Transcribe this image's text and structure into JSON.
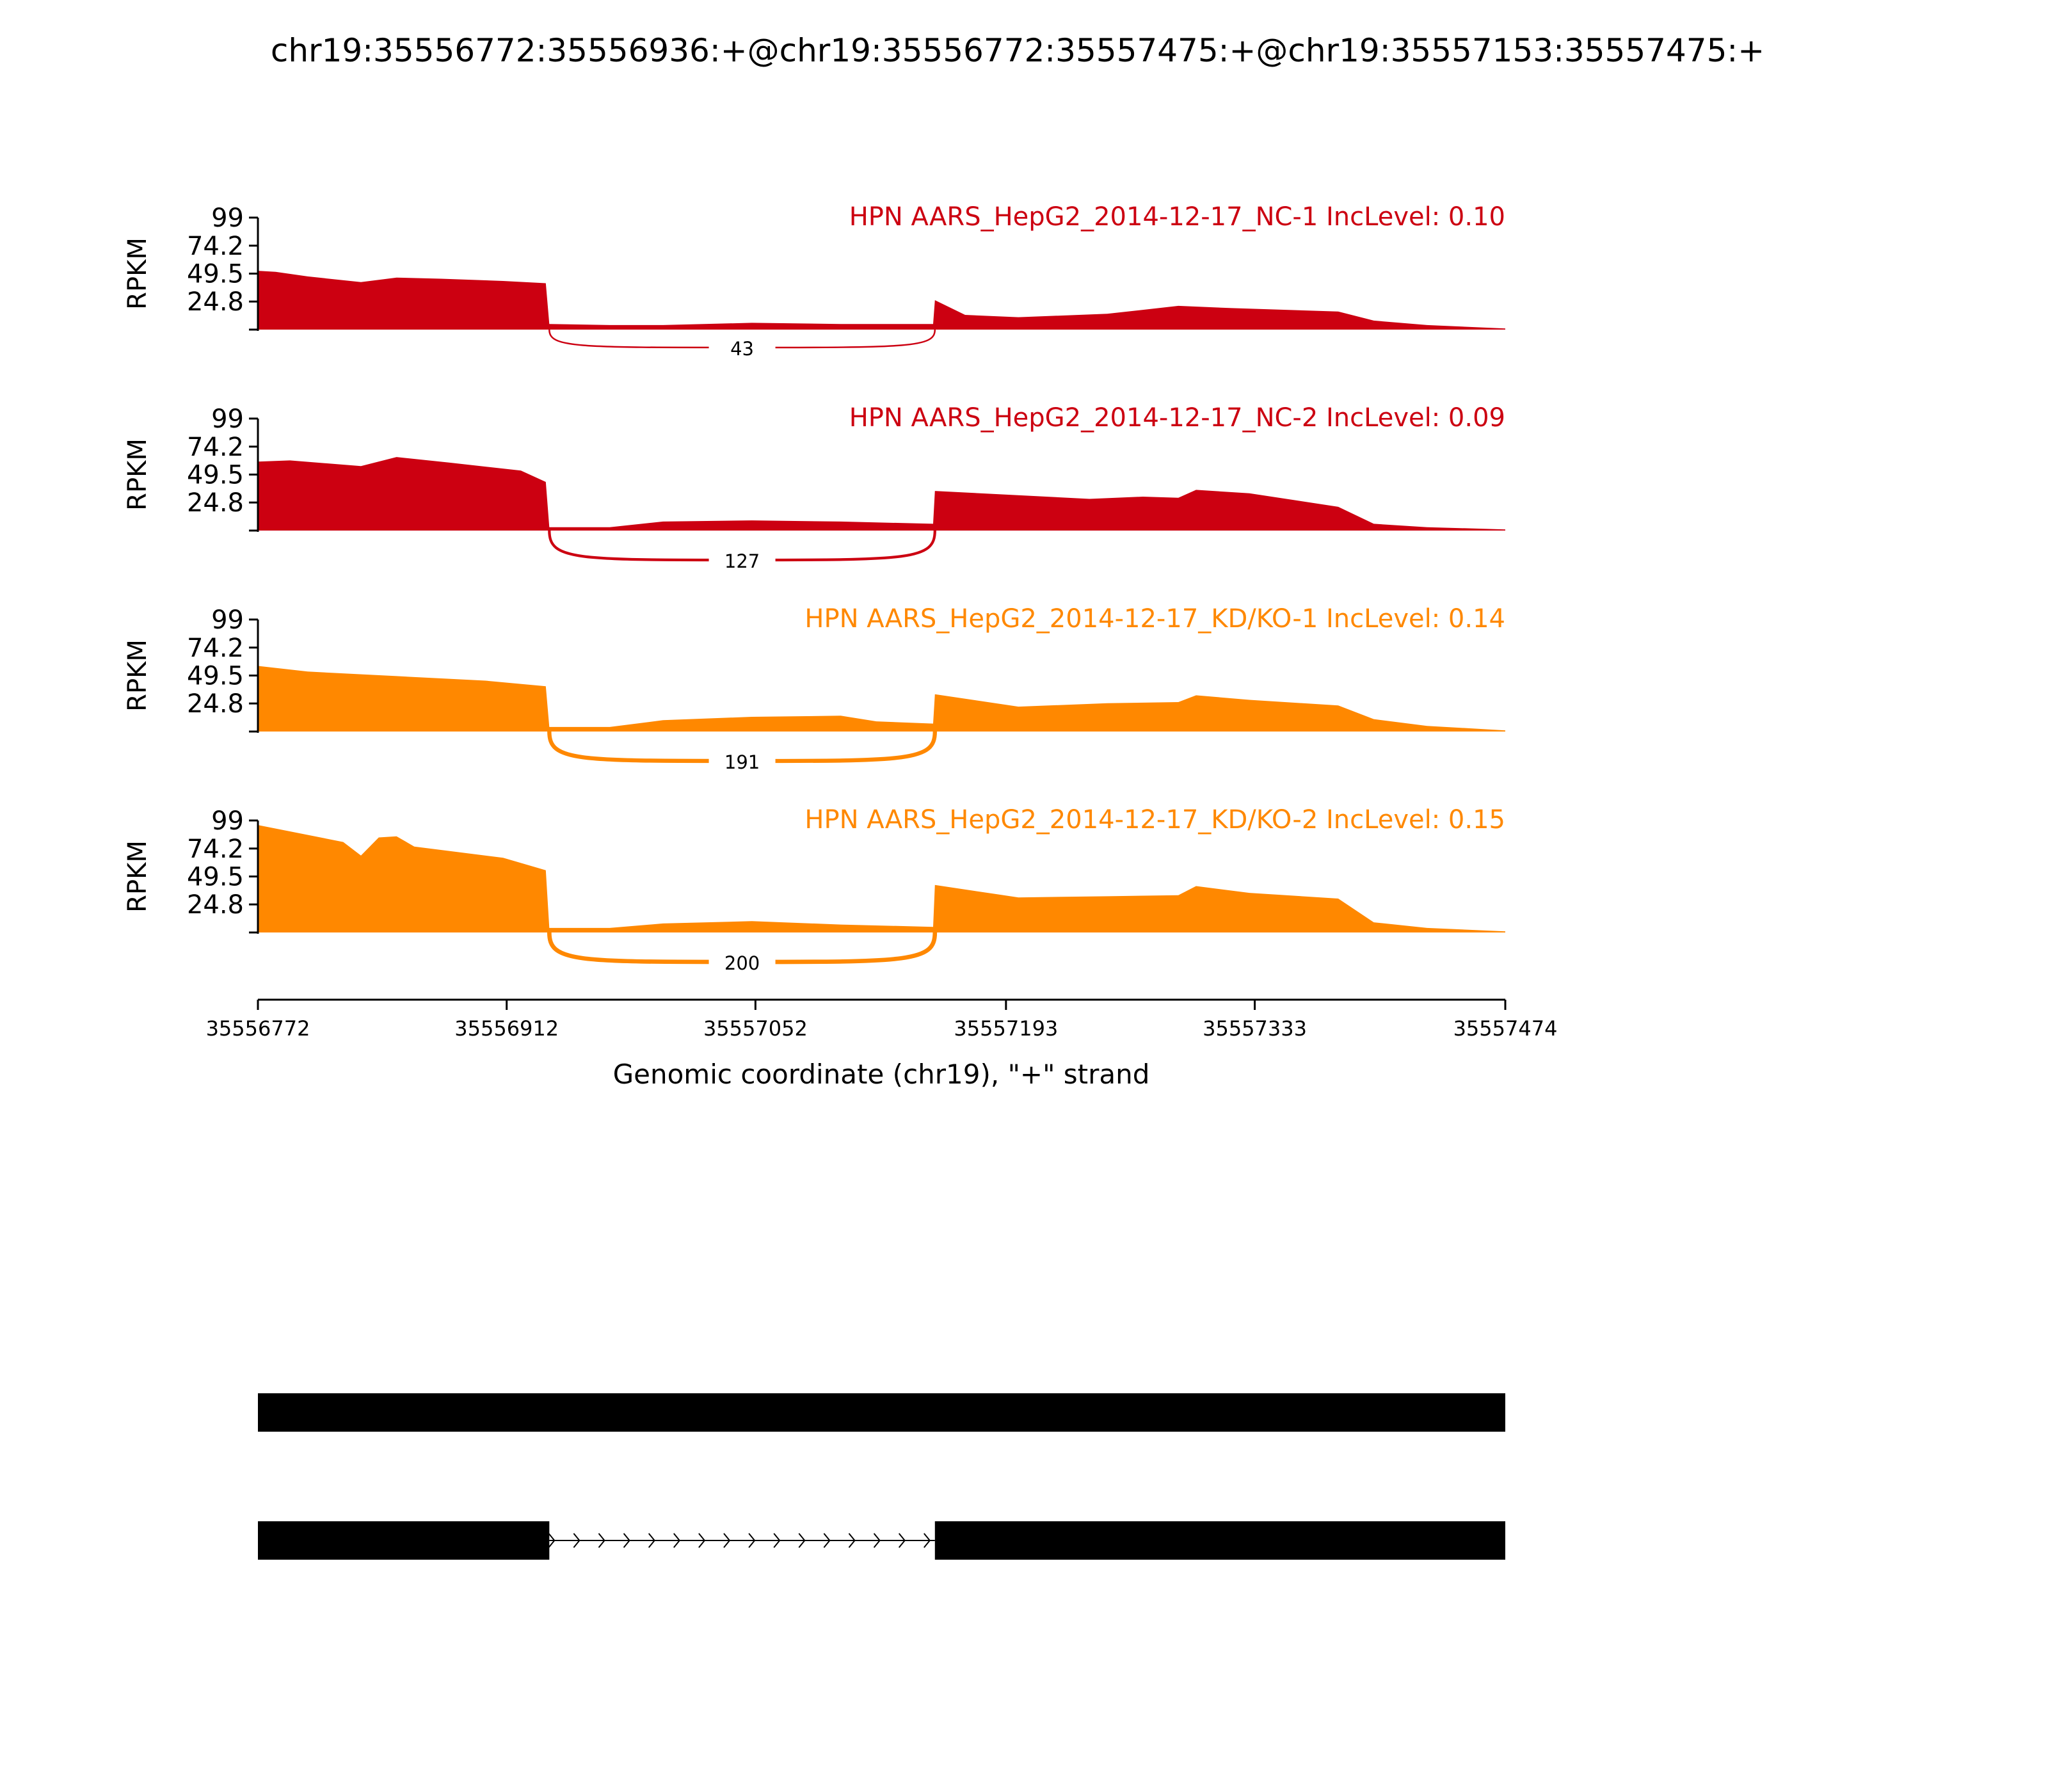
{
  "chart_data": {
    "type": "area",
    "title": "chr19:35556772:35556936:+@chr19:35556772:35557475:+@chr19:35557153:35557475:+",
    "xlabel": "Genomic coordinate (chr19), \"+\" strand",
    "ylabel": "RPKM",
    "xlim": [
      35556772,
      35557474
    ],
    "ylim": [
      0,
      99
    ],
    "x_ticks": [
      "35556772",
      "35556912",
      "35557052",
      "35557193",
      "35557333",
      "35557474"
    ],
    "y_ticks": [
      "99",
      "74.2",
      "49.5",
      "24.8"
    ],
    "colors": {
      "NC": "#cc0011",
      "KD/KO": "#ff8800"
    },
    "exon_coordinates": {
      "upstream_exon_end": 35556936,
      "downstream_exon_start": 35557153
    },
    "tracks": [
      {
        "name": "HPN AARS_HepG2_2014-12-17_NC-1",
        "label": "HPN AARS_HepG2_2014-12-17_NC-1 IncLevel: 0.10",
        "color": "#cc0011",
        "junction_reads": "43",
        "coverage": [
          [
            35556772,
            52
          ],
          [
            35556782,
            51
          ],
          [
            35556800,
            47
          ],
          [
            35556830,
            42
          ],
          [
            35556850,
            46
          ],
          [
            35556875,
            45
          ],
          [
            35556910,
            43
          ],
          [
            35556934,
            41
          ],
          [
            35556936,
            5
          ],
          [
            35556970,
            4
          ],
          [
            35557000,
            4
          ],
          [
            35557050,
            6
          ],
          [
            35557100,
            5
          ],
          [
            35557152,
            5
          ],
          [
            35557153,
            26
          ],
          [
            35557170,
            13
          ],
          [
            35557200,
            11
          ],
          [
            35557250,
            14
          ],
          [
            35557290,
            21
          ],
          [
            35557320,
            19
          ],
          [
            35557380,
            16
          ],
          [
            35557400,
            8
          ],
          [
            35557430,
            4
          ],
          [
            35557474,
            1
          ]
        ]
      },
      {
        "name": "HPN AARS_HepG2_2014-12-17_NC-2",
        "label": "HPN AARS_HepG2_2014-12-17_NC-2 IncLevel: 0.09",
        "color": "#cc0011",
        "junction_reads": "127",
        "coverage": [
          [
            35556772,
            61
          ],
          [
            35556790,
            62
          ],
          [
            35556830,
            57
          ],
          [
            35556850,
            65
          ],
          [
            35556880,
            60
          ],
          [
            35556920,
            53
          ],
          [
            35556934,
            43
          ],
          [
            35556936,
            3
          ],
          [
            35556970,
            3
          ],
          [
            35557000,
            8
          ],
          [
            35557050,
            9
          ],
          [
            35557100,
            8
          ],
          [
            35557152,
            6
          ],
          [
            35557153,
            35
          ],
          [
            35557190,
            32
          ],
          [
            35557240,
            28
          ],
          [
            35557270,
            30
          ],
          [
            35557290,
            29
          ],
          [
            35557300,
            36
          ],
          [
            35557330,
            33
          ],
          [
            35557380,
            21
          ],
          [
            35557400,
            6
          ],
          [
            35557430,
            3
          ],
          [
            35557474,
            1
          ]
        ]
      },
      {
        "name": "HPN AARS_HepG2_2014-12-17_KD/KO-1",
        "label": "HPN AARS_HepG2_2014-12-17_KD/KO-1 IncLevel: 0.14",
        "color": "#ff8800",
        "junction_reads": "191",
        "coverage": [
          [
            35556772,
            58
          ],
          [
            35556800,
            53
          ],
          [
            35556850,
            49
          ],
          [
            35556900,
            45
          ],
          [
            35556934,
            40
          ],
          [
            35556936,
            4
          ],
          [
            35556970,
            4
          ],
          [
            35557000,
            10
          ],
          [
            35557050,
            13
          ],
          [
            35557100,
            14
          ],
          [
            35557120,
            9
          ],
          [
            35557152,
            7
          ],
          [
            35557153,
            33
          ],
          [
            35557200,
            22
          ],
          [
            35557250,
            25
          ],
          [
            35557290,
            26
          ],
          [
            35557300,
            32
          ],
          [
            35557330,
            28
          ],
          [
            35557380,
            23
          ],
          [
            35557400,
            11
          ],
          [
            35557430,
            5
          ],
          [
            35557474,
            1
          ]
        ]
      },
      {
        "name": "HPN AARS_HepG2_2014-12-17_KD/KO-2",
        "label": "HPN AARS_HepG2_2014-12-17_KD/KO-2 IncLevel: 0.15",
        "color": "#ff8800",
        "junction_reads": "200",
        "coverage": [
          [
            35556772,
            95
          ],
          [
            35556820,
            80
          ],
          [
            35556830,
            68
          ],
          [
            35556840,
            84
          ],
          [
            35556850,
            85
          ],
          [
            35556860,
            76
          ],
          [
            35556910,
            66
          ],
          [
            35556934,
            55
          ],
          [
            35556936,
            4
          ],
          [
            35556970,
            4
          ],
          [
            35557000,
            8
          ],
          [
            35557050,
            10
          ],
          [
            35557100,
            7
          ],
          [
            35557152,
            5
          ],
          [
            35557153,
            42
          ],
          [
            35557200,
            31
          ],
          [
            35557250,
            32
          ],
          [
            35557290,
            33
          ],
          [
            35557300,
            41
          ],
          [
            35557330,
            35
          ],
          [
            35557380,
            30
          ],
          [
            35557400,
            9
          ],
          [
            35557430,
            4
          ],
          [
            35557474,
            1
          ]
        ]
      }
    ],
    "isoforms": [
      {
        "exons": [
          [
            35556772,
            35557474
          ]
        ]
      },
      {
        "exons": [
          [
            35556772,
            35556936
          ],
          [
            35557153,
            35557474
          ]
        ]
      }
    ]
  }
}
